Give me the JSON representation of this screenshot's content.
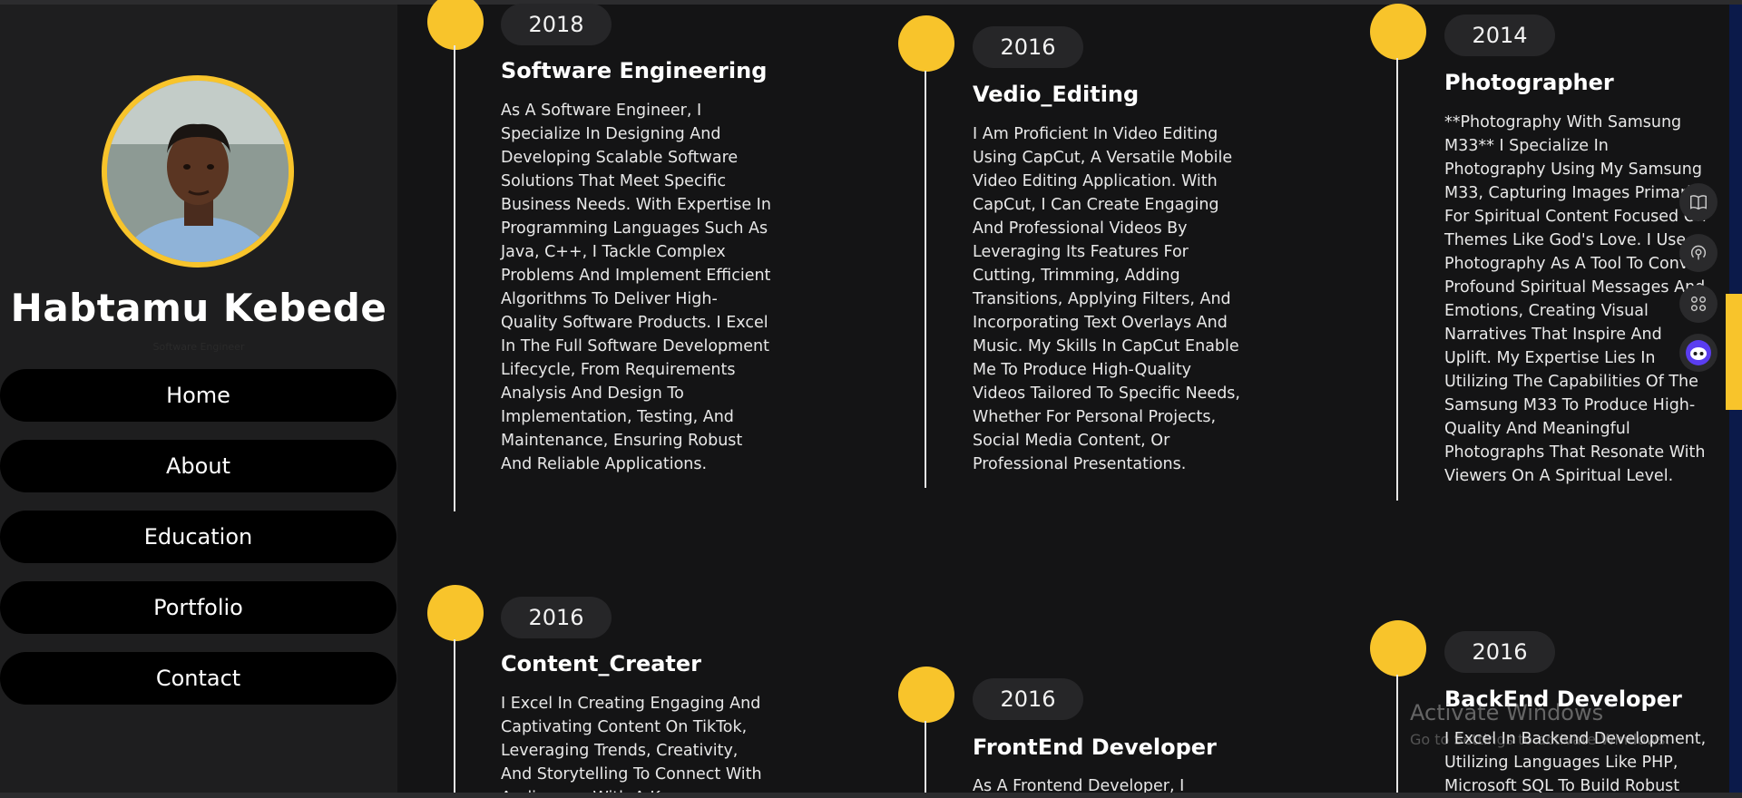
{
  "profile": {
    "name": "Habtamu Kebede",
    "role": "Software Engineer"
  },
  "nav": [
    "Home",
    "About",
    "Education",
    "Portfolio",
    "Contact"
  ],
  "timeline": [
    {
      "year": "2018",
      "title": "Software Engineering",
      "description": "As A Software Engineer, I Specialize In Designing And Developing Scalable Software Solutions That Meet Specific Business Needs. With Expertise In Programming Languages Such As Java, C++, I Tackle Complex Problems And Implement Efficient Algorithms To Deliver High-Quality Software Products. I Excel In The Full Software Development Lifecycle, From Requirements Analysis And Design To Implementation, Testing, And Maintenance, Ensuring Robust And Reliable Applications."
    },
    {
      "year": "2016",
      "title": "Vedio_Editing",
      "description": "I Am Proficient In Video Editing Using CapCut, A Versatile Mobile Video Editing Application. With CapCut, I Can Create Engaging And Professional Videos By Leveraging Its Features For Cutting, Trimming, Adding Transitions, Applying Filters, And Incorporating Text Overlays And Music. My Skills In CapCut Enable Me To Produce High-Quality Videos Tailored To Specific Needs, Whether For Personal Projects, Social Media Content, Or Professional Presentations."
    },
    {
      "year": "2014",
      "title": "Photographer",
      "description": "**Photography With Samsung M33** I Specialize In Photography Using My Samsung M33, Capturing Images Primarily For Spiritual Content Focused On Themes Like God's Love. I Use Photography As A Tool To Convey Profound Spiritual Messages And Emotions, Creating Visual Narratives That Inspire And Uplift. My Expertise Lies In Utilizing The Capabilities Of The Samsung M33 To Produce High-Quality And Meaningful Photographs That Resonate With Viewers On A Spiritual Level."
    },
    {
      "year": "2016",
      "title": "Content_Creater",
      "description": "I Excel In Creating Engaging And Captivating Content On TikTok, Leveraging Trends, Creativity, And Storytelling To Connect With Audiences. With A Keen"
    },
    {
      "year": "2016",
      "title": "FrontEnd Developer",
      "description": "As A Frontend Developer, I"
    },
    {
      "year": "2016",
      "title": "BackEnd Developer",
      "description": "I Excel In Backend Development, Utilizing Languages Like PHP, Microsoft SQL To Build Robust"
    }
  ],
  "side_icons": [
    "book-icon",
    "podcast-icon",
    "apps-grid-icon",
    "assistant-bot-icon"
  ],
  "watermark": {
    "title": "Activate Windows",
    "subtitle": "Go to Settings to activate Windows."
  },
  "colors": {
    "accent": "#f8c42b",
    "background": "#141415",
    "sidebar": "#1e1e1f",
    "pill": "#262628"
  }
}
